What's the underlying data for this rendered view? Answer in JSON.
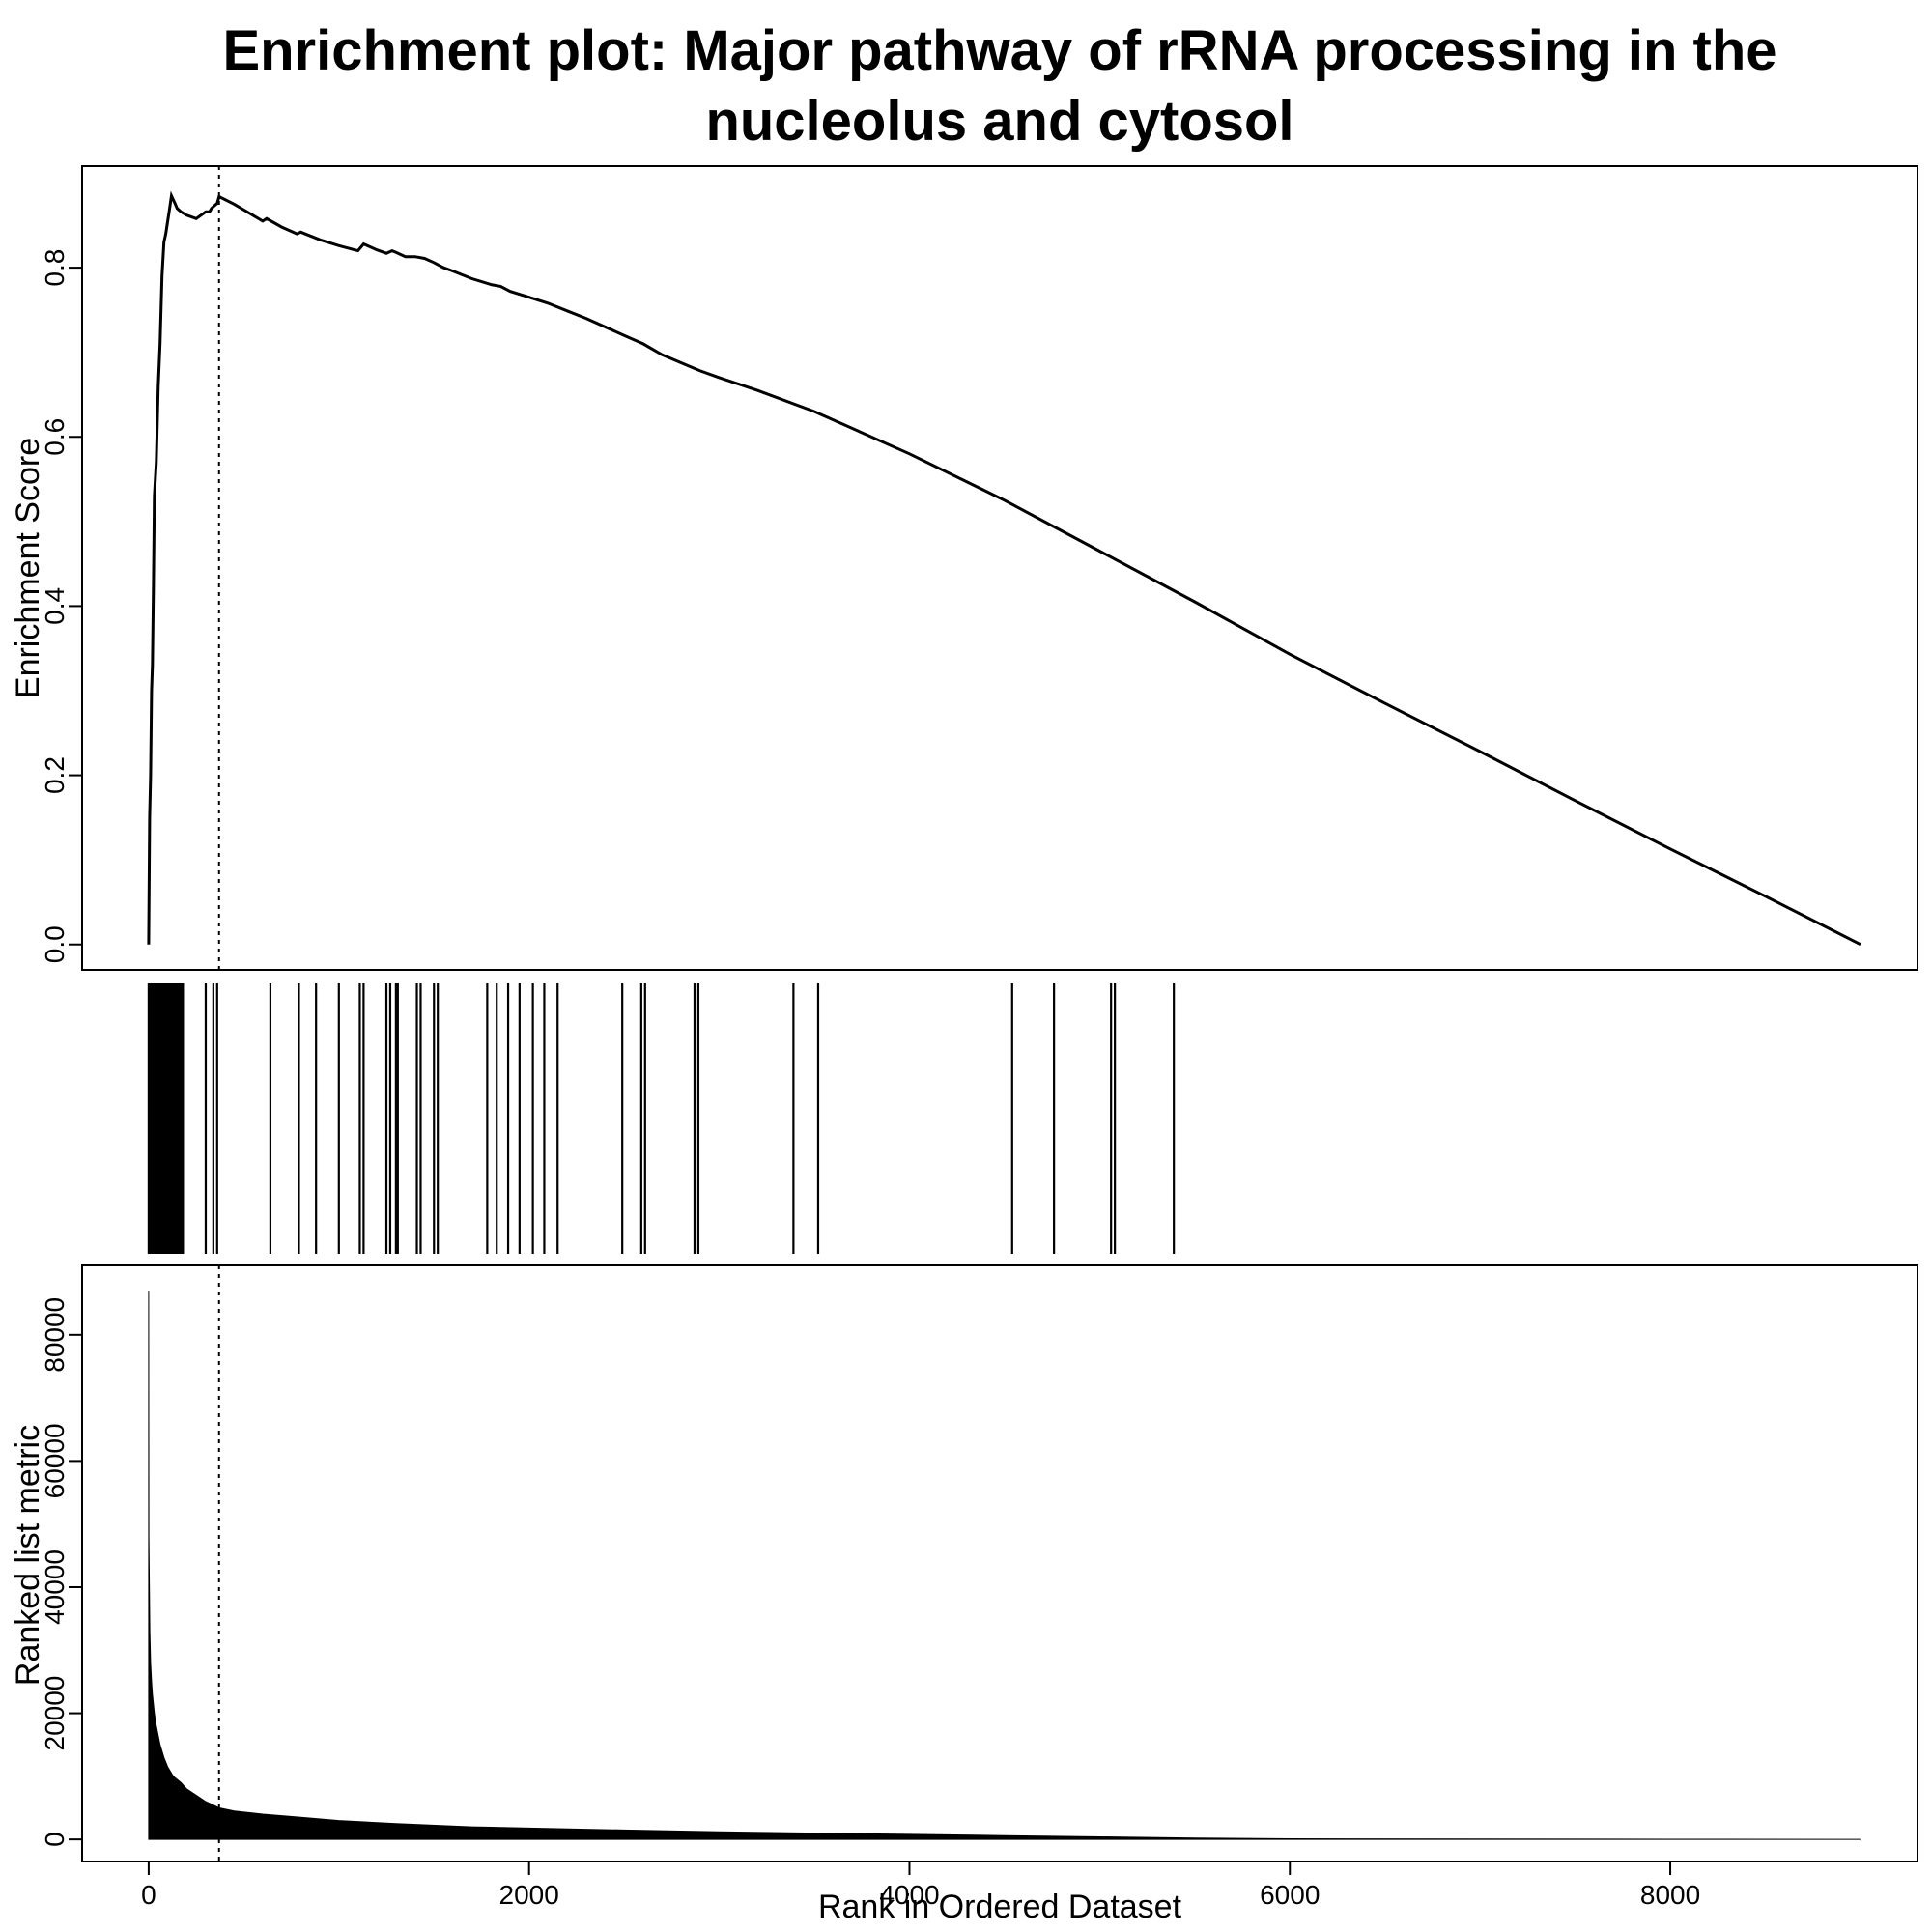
{
  "chart_data": [
    {
      "panel": "enrichment",
      "type": "line",
      "title_lines": [
        "Enrichment plot: Major pathway of rRNA processing in the",
        "nucleolus and cytosol"
      ],
      "ylabel": "Enrichment Score",
      "xlim": [
        -350,
        9300
      ],
      "ylim": [
        -0.03,
        0.92
      ],
      "yticks": [
        0.0,
        0.2,
        0.4,
        0.6,
        0.8
      ],
      "ytick_labels": [
        "0.0",
        "0.2",
        "0.4",
        "0.6",
        "0.8"
      ],
      "max_es_rank": 370,
      "x": [
        0,
        5,
        10,
        15,
        20,
        25,
        30,
        40,
        50,
        60,
        70,
        80,
        90,
        100,
        110,
        120,
        130,
        140,
        150,
        170,
        200,
        250,
        300,
        320,
        330,
        350,
        360,
        370,
        450,
        600,
        620,
        700,
        780,
        800,
        900,
        1000,
        1100,
        1130,
        1200,
        1250,
        1280,
        1300,
        1350,
        1400,
        1450,
        1500,
        1550,
        1600,
        1700,
        1800,
        1850,
        1900,
        2000,
        2100,
        2200,
        2300,
        2500,
        2600,
        2700,
        2900,
        3000,
        3200,
        3500,
        4000,
        4500,
        5000,
        5500,
        6000,
        6500,
        7000,
        7500,
        8000,
        8500,
        9000
      ],
      "y": [
        0.0,
        0.15,
        0.2,
        0.3,
        0.33,
        0.42,
        0.53,
        0.57,
        0.66,
        0.71,
        0.79,
        0.83,
        0.84,
        0.855,
        0.87,
        0.885,
        0.88,
        0.875,
        0.87,
        0.866,
        0.862,
        0.858,
        0.866,
        0.866,
        0.87,
        0.874,
        0.876,
        0.884,
        0.875,
        0.855,
        0.858,
        0.848,
        0.84,
        0.842,
        0.833,
        0.826,
        0.82,
        0.828,
        0.821,
        0.817,
        0.82,
        0.818,
        0.813,
        0.813,
        0.811,
        0.806,
        0.8,
        0.796,
        0.787,
        0.78,
        0.778,
        0.772,
        0.765,
        0.758,
        0.749,
        0.74,
        0.72,
        0.71,
        0.697,
        0.678,
        0.67,
        0.655,
        0.63,
        0.58,
        0.525,
        0.465,
        0.405,
        0.343,
        0.285,
        0.228,
        0.17,
        0.113,
        0.057,
        0.0
      ]
    },
    {
      "panel": "hits",
      "type": "barcode",
      "hit_ranks": [
        0,
        5,
        10,
        15,
        20,
        25,
        30,
        35,
        40,
        45,
        50,
        55,
        60,
        65,
        70,
        75,
        80,
        85,
        90,
        95,
        100,
        110,
        120,
        130,
        140,
        150,
        160,
        170,
        180,
        300,
        340,
        360,
        640,
        790,
        880,
        1000,
        1110,
        1130,
        1250,
        1270,
        1300,
        1310,
        1410,
        1430,
        1500,
        1520,
        1780,
        1830,
        1890,
        1950,
        2020,
        2080,
        2150,
        2490,
        2590,
        2610,
        2870,
        2890,
        3390,
        3520,
        4540,
        4760,
        5060,
        5080,
        5390
      ]
    },
    {
      "panel": "metric",
      "type": "area",
      "ylabel": "Ranked list metric",
      "xlabel": "Rank in Ordered Dataset",
      "xlim": [
        -350,
        9300
      ],
      "ylim": [
        -3500,
        91000
      ],
      "xticks": [
        0,
        2000,
        4000,
        6000,
        8000
      ],
      "xtick_labels": [
        "0",
        "2000",
        "4000",
        "6000",
        "8000"
      ],
      "yticks": [
        0,
        20000,
        40000,
        60000,
        80000
      ],
      "ytick_labels": [
        "0",
        "20000",
        "40000",
        "60000",
        "80000"
      ],
      "max_es_rank": 370,
      "x": [
        0,
        1,
        3,
        6,
        10,
        15,
        20,
        30,
        40,
        60,
        80,
        100,
        130,
        170,
        200,
        250,
        300,
        370,
        450,
        600,
        800,
        1000,
        1300,
        1700,
        2000,
        2500,
        3000,
        3500,
        4000,
        4500,
        5000,
        5500,
        6000,
        7000,
        8000,
        9000
      ],
      "y": [
        87000,
        48000,
        42000,
        33000,
        28000,
        25000,
        23000,
        20000,
        18000,
        15000,
        13000,
        11500,
        10000,
        9000,
        8000,
        7000,
        6000,
        5000,
        4500,
        4000,
        3500,
        3000,
        2500,
        2000,
        1800,
        1500,
        1200,
        1000,
        800,
        600,
        400,
        200,
        100,
        50,
        20,
        0
      ]
    }
  ]
}
